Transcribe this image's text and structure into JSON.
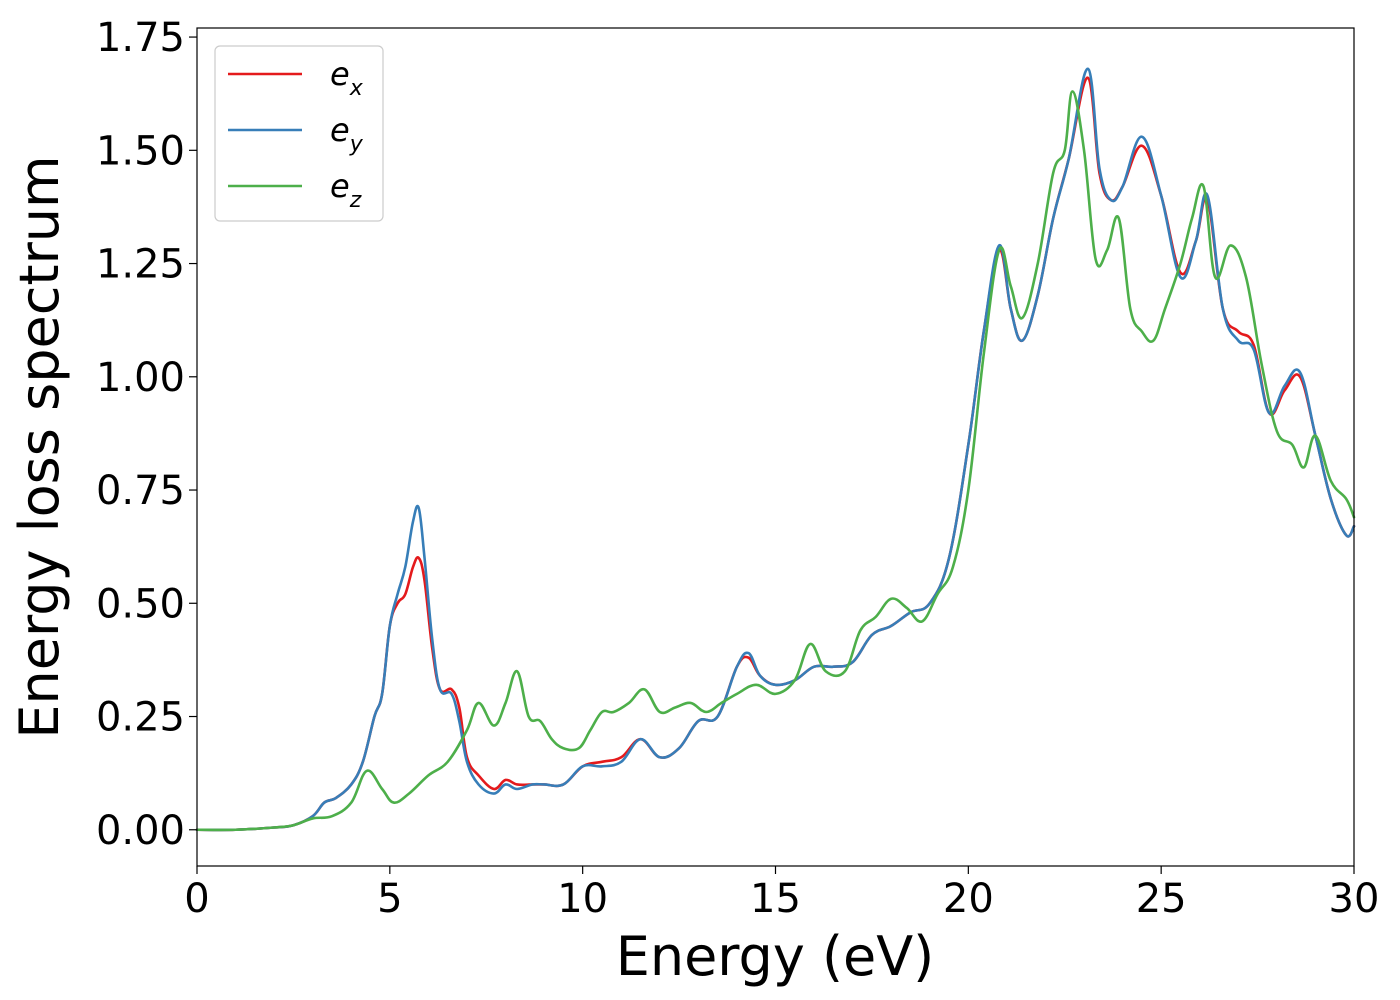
{
  "chart_data": {
    "type": "line",
    "xlabel": "Energy (eV)",
    "ylabel": "Energy loss spectrum",
    "xlim": [
      0,
      30
    ],
    "ylim": [
      -0.08,
      1.77
    ],
    "xticks": [
      0,
      5,
      10,
      15,
      20,
      25,
      30
    ],
    "xtick_labels": [
      "0",
      "5",
      "10",
      "15",
      "20",
      "25",
      "30"
    ],
    "yticks": [
      0,
      0.25,
      0.5,
      0.75,
      1.0,
      1.25,
      1.5,
      1.75
    ],
    "ytick_labels": [
      "0.00",
      "0.25",
      "0.50",
      "0.75",
      "1.00",
      "1.25",
      "1.50",
      "1.75"
    ],
    "grid": false,
    "legend_position": "top-left",
    "series": [
      {
        "name": "e",
        "subscript": "x",
        "color": "#e41a1c",
        "x": [
          0,
          1,
          2,
          2.5,
          3,
          3.3,
          3.6,
          4,
          4.3,
          4.6,
          4.8,
          5.0,
          5.2,
          5.4,
          5.6,
          5.75,
          5.9,
          6.1,
          6.3,
          6.6,
          6.8,
          7,
          7.3,
          7.7,
          8,
          8.3,
          8.7,
          9,
          9.5,
          10,
          10.5,
          11,
          11.5,
          12,
          12.5,
          13,
          13.5,
          14,
          14.3,
          14.6,
          15,
          15.5,
          16,
          16.5,
          17,
          17.5,
          18,
          18.5,
          19,
          19.5,
          20,
          20.4,
          20.8,
          21.1,
          21.4,
          21.8,
          22.2,
          22.6,
          23.1,
          23.4,
          23.7,
          24,
          24.5,
          25,
          25.5,
          25.9,
          26.2,
          26.6,
          27,
          27.4,
          27.8,
          28.2,
          28.6,
          29,
          29.4,
          29.8,
          30
        ],
        "values": [
          0,
          0,
          0.005,
          0.01,
          0.03,
          0.06,
          0.07,
          0.1,
          0.15,
          0.25,
          0.3,
          0.45,
          0.5,
          0.52,
          0.58,
          0.6,
          0.55,
          0.4,
          0.31,
          0.31,
          0.27,
          0.16,
          0.12,
          0.09,
          0.11,
          0.1,
          0.1,
          0.1,
          0.1,
          0.14,
          0.15,
          0.16,
          0.2,
          0.16,
          0.18,
          0.24,
          0.25,
          0.36,
          0.38,
          0.34,
          0.32,
          0.33,
          0.36,
          0.36,
          0.37,
          0.43,
          0.45,
          0.48,
          0.5,
          0.6,
          0.85,
          1.1,
          1.28,
          1.15,
          1.08,
          1.18,
          1.35,
          1.48,
          1.66,
          1.45,
          1.39,
          1.42,
          1.51,
          1.4,
          1.23,
          1.3,
          1.39,
          1.15,
          1.1,
          1.07,
          0.92,
          0.97,
          1.0,
          0.87,
          0.73,
          0.65,
          0.67
        ]
      },
      {
        "name": "e",
        "subscript": "y",
        "color": "#377eb8",
        "x": [
          0,
          1,
          2,
          2.5,
          3,
          3.3,
          3.6,
          4,
          4.3,
          4.6,
          4.8,
          5.0,
          5.2,
          5.4,
          5.6,
          5.75,
          5.9,
          6.1,
          6.3,
          6.6,
          6.8,
          7,
          7.3,
          7.7,
          8,
          8.3,
          8.7,
          9,
          9.5,
          10,
          10.5,
          11,
          11.5,
          12,
          12.5,
          13,
          13.5,
          14,
          14.3,
          14.6,
          15,
          15.5,
          16,
          16.5,
          17,
          17.5,
          18,
          18.5,
          19,
          19.5,
          20,
          20.4,
          20.8,
          21.1,
          21.4,
          21.8,
          22.2,
          22.6,
          23.1,
          23.4,
          23.7,
          24,
          24.5,
          25,
          25.5,
          25.9,
          26.2,
          26.6,
          27,
          27.4,
          27.8,
          28.2,
          28.6,
          29,
          29.4,
          29.8,
          30
        ],
        "values": [
          0,
          0,
          0.005,
          0.01,
          0.03,
          0.06,
          0.07,
          0.1,
          0.15,
          0.25,
          0.3,
          0.45,
          0.52,
          0.58,
          0.68,
          0.71,
          0.6,
          0.42,
          0.31,
          0.3,
          0.24,
          0.15,
          0.1,
          0.08,
          0.1,
          0.09,
          0.1,
          0.1,
          0.1,
          0.14,
          0.14,
          0.15,
          0.2,
          0.16,
          0.18,
          0.24,
          0.25,
          0.36,
          0.39,
          0.34,
          0.32,
          0.33,
          0.36,
          0.36,
          0.37,
          0.43,
          0.45,
          0.48,
          0.5,
          0.6,
          0.85,
          1.1,
          1.29,
          1.15,
          1.08,
          1.18,
          1.35,
          1.48,
          1.68,
          1.46,
          1.39,
          1.42,
          1.53,
          1.4,
          1.22,
          1.3,
          1.4,
          1.15,
          1.08,
          1.06,
          0.92,
          0.98,
          1.01,
          0.87,
          0.73,
          0.65,
          0.67
        ]
      },
      {
        "name": "e",
        "subscript": "z",
        "color": "#4daf4a",
        "x": [
          0,
          1,
          2,
          2.5,
          3,
          3.5,
          4,
          4.4,
          4.8,
          5.1,
          5.5,
          6,
          6.5,
          7,
          7.3,
          7.7,
          8,
          8.3,
          8.6,
          8.9,
          9.2,
          9.5,
          9.9,
          10.2,
          10.5,
          10.8,
          11.2,
          11.6,
          12,
          12.4,
          12.8,
          13.2,
          13.6,
          14,
          14.5,
          15,
          15.5,
          15.9,
          16.3,
          16.8,
          17.2,
          17.6,
          18,
          18.4,
          18.8,
          19.2,
          19.6,
          20,
          20.4,
          20.8,
          21.1,
          21.4,
          21.8,
          22.2,
          22.5,
          22.7,
          23,
          23.3,
          23.6,
          23.9,
          24.2,
          24.5,
          24.8,
          25.1,
          25.5,
          25.8,
          26.1,
          26.4,
          26.8,
          27.2,
          27.6,
          28,
          28.4,
          28.7,
          29,
          29.4,
          29.8,
          30
        ],
        "values": [
          0,
          0,
          0.005,
          0.01,
          0.025,
          0.03,
          0.06,
          0.13,
          0.09,
          0.06,
          0.08,
          0.12,
          0.15,
          0.22,
          0.28,
          0.23,
          0.28,
          0.35,
          0.25,
          0.24,
          0.2,
          0.18,
          0.18,
          0.22,
          0.26,
          0.26,
          0.28,
          0.31,
          0.26,
          0.27,
          0.28,
          0.26,
          0.28,
          0.3,
          0.32,
          0.3,
          0.33,
          0.41,
          0.35,
          0.35,
          0.44,
          0.47,
          0.51,
          0.49,
          0.46,
          0.52,
          0.58,
          0.75,
          1.05,
          1.28,
          1.2,
          1.13,
          1.25,
          1.45,
          1.5,
          1.63,
          1.5,
          1.26,
          1.28,
          1.35,
          1.15,
          1.1,
          1.08,
          1.15,
          1.25,
          1.35,
          1.42,
          1.22,
          1.29,
          1.22,
          1.03,
          0.88,
          0.85,
          0.8,
          0.87,
          0.77,
          0.73,
          0.69
        ]
      }
    ]
  }
}
